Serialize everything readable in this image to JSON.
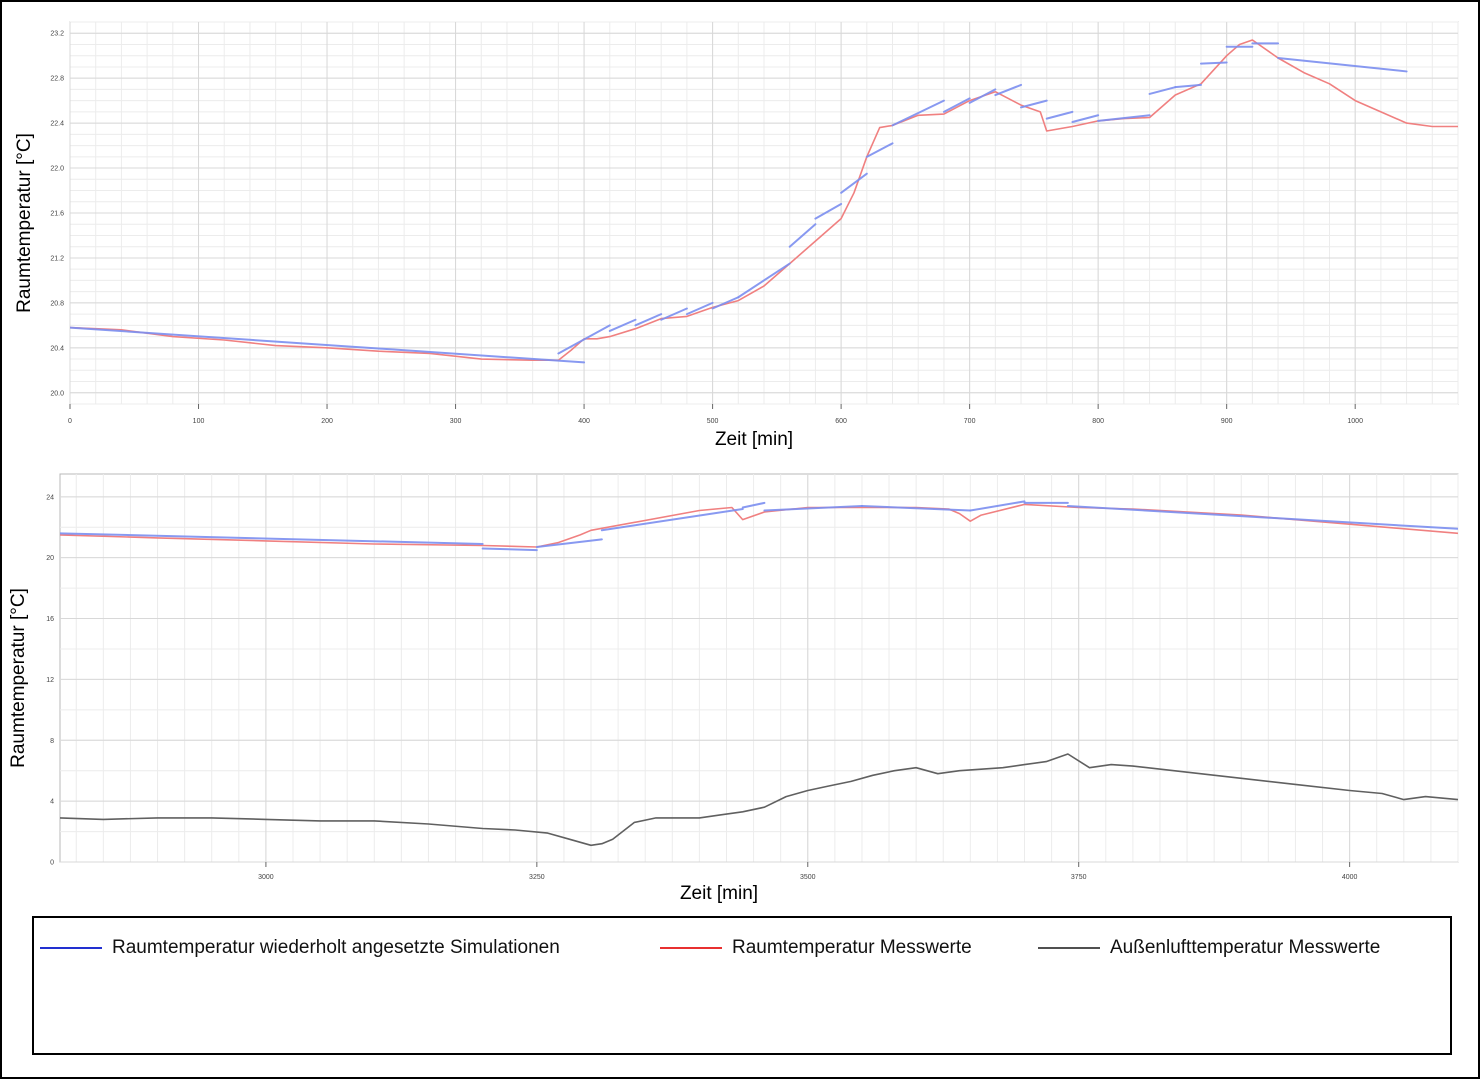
{
  "colors": {
    "simulation": "#7c8ff0",
    "measured_room": "#f08080",
    "outdoor": "#606060"
  },
  "legend": {
    "items": [
      {
        "label": "Raumtemperatur wiederholt angesetzte Simulationen",
        "color": "#2230d0"
      },
      {
        "label": "Raumtemperatur Messwerte",
        "color": "#e83030"
      },
      {
        "label": "Außenlufttemperatur Messwerte",
        "color": "#505050"
      }
    ]
  },
  "chart_data": [
    {
      "type": "line",
      "xlabel": "Zeit [min]",
      "ylabel": "Raumtemperatur [°C]",
      "xlim": [
        0,
        1080
      ],
      "ylim": [
        19.9,
        23.3
      ],
      "xticks": [
        0,
        100,
        200,
        300,
        400,
        500,
        600,
        700,
        800,
        900,
        1000
      ],
      "yticks": [
        20.0,
        20.4,
        20.8,
        21.2,
        21.6,
        22.0,
        22.4,
        22.8,
        23.2
      ],
      "grid": true,
      "series": [
        {
          "name": "Raumtemperatur Messwerte",
          "kind": "measured",
          "x": [
            0,
            40,
            80,
            120,
            160,
            200,
            240,
            280,
            320,
            360,
            380,
            390,
            400,
            410,
            420,
            440,
            460,
            480,
            500,
            520,
            540,
            560,
            580,
            600,
            610,
            620,
            630,
            640,
            660,
            680,
            700,
            720,
            740,
            755,
            760,
            780,
            800,
            820,
            840,
            860,
            880,
            900,
            910,
            920,
            940,
            960,
            980,
            1000,
            1020,
            1040,
            1060,
            1080
          ],
          "y": [
            20.58,
            20.56,
            20.5,
            20.47,
            20.42,
            20.4,
            20.37,
            20.35,
            20.3,
            20.29,
            20.29,
            20.38,
            20.48,
            20.48,
            20.5,
            20.57,
            20.66,
            20.68,
            20.76,
            20.82,
            20.95,
            21.15,
            21.35,
            21.55,
            21.78,
            22.1,
            22.36,
            22.38,
            22.47,
            22.48,
            22.6,
            22.68,
            22.56,
            22.5,
            22.33,
            22.37,
            22.42,
            22.44,
            22.45,
            22.65,
            22.75,
            23.0,
            23.1,
            23.14,
            22.98,
            22.85,
            22.75,
            22.6,
            22.5,
            22.4,
            22.37,
            22.37
          ]
        },
        {
          "name": "Raumtemperatur wiederholt angesetzte Simulationen",
          "kind": "segments",
          "segments": [
            [
              [
                0,
                20.58
              ],
              [
                400,
                20.27
              ]
            ],
            [
              [
                380,
                20.35
              ],
              [
                420,
                20.6
              ]
            ],
            [
              [
                420,
                20.55
              ],
              [
                440,
                20.65
              ]
            ],
            [
              [
                440,
                20.6
              ],
              [
                460,
                20.7
              ]
            ],
            [
              [
                460,
                20.65
              ],
              [
                480,
                20.75
              ]
            ],
            [
              [
                480,
                20.7
              ],
              [
                500,
                20.8
              ]
            ],
            [
              [
                500,
                20.75
              ],
              [
                520,
                20.85
              ]
            ],
            [
              [
                520,
                20.85
              ],
              [
                560,
                21.15
              ]
            ],
            [
              [
                560,
                21.3
              ],
              [
                580,
                21.5
              ]
            ],
            [
              [
                580,
                21.55
              ],
              [
                600,
                21.68
              ]
            ],
            [
              [
                600,
                21.78
              ],
              [
                620,
                21.95
              ]
            ],
            [
              [
                620,
                22.1
              ],
              [
                640,
                22.22
              ]
            ],
            [
              [
                640,
                22.38
              ],
              [
                680,
                22.6
              ]
            ],
            [
              [
                680,
                22.5
              ],
              [
                700,
                22.62
              ]
            ],
            [
              [
                700,
                22.58
              ],
              [
                720,
                22.7
              ]
            ],
            [
              [
                720,
                22.65
              ],
              [
                740,
                22.74
              ]
            ],
            [
              [
                740,
                22.54
              ],
              [
                760,
                22.6
              ]
            ],
            [
              [
                760,
                22.44
              ],
              [
                780,
                22.5
              ]
            ],
            [
              [
                780,
                22.41
              ],
              [
                800,
                22.47
              ]
            ],
            [
              [
                800,
                22.42
              ],
              [
                840,
                22.47
              ]
            ],
            [
              [
                840,
                22.66
              ],
              [
                860,
                22.72
              ]
            ],
            [
              [
                860,
                22.72
              ],
              [
                880,
                22.74
              ]
            ],
            [
              [
                880,
                22.93
              ],
              [
                900,
                22.94
              ]
            ],
            [
              [
                900,
                23.08
              ],
              [
                920,
                23.08
              ]
            ],
            [
              [
                920,
                23.11
              ],
              [
                940,
                23.11
              ]
            ],
            [
              [
                940,
                22.98
              ],
              [
                1040,
                22.86
              ]
            ]
          ]
        }
      ]
    },
    {
      "type": "line",
      "xlabel": "Zeit [min]",
      "ylabel": "Raumtemperatur [°C]",
      "xlim": [
        2810,
        4100
      ],
      "ylim": [
        0,
        25.5
      ],
      "xticks": [
        3000,
        3250,
        3500,
        3750,
        4000
      ],
      "xtick_labels": [
        "3000",
        "3250",
        "3500",
        "3750",
        "4000"
      ],
      "yticks": [
        0,
        4,
        8,
        12,
        16,
        20,
        24
      ],
      "grid": true,
      "series": [
        {
          "name": "Raumtemperatur Messwerte",
          "kind": "measured",
          "x": [
            2810,
            2900,
            3000,
            3100,
            3200,
            3250,
            3270,
            3290,
            3300,
            3400,
            3430,
            3440,
            3460,
            3500,
            3550,
            3600,
            3630,
            3640,
            3650,
            3660,
            3700,
            3750,
            3800,
            3900,
            4000,
            4100
          ],
          "y": [
            21.5,
            21.3,
            21.1,
            20.9,
            20.8,
            20.7,
            21.0,
            21.5,
            21.8,
            23.1,
            23.3,
            22.5,
            23.0,
            23.3,
            23.3,
            23.3,
            23.2,
            22.9,
            22.4,
            22.8,
            23.5,
            23.3,
            23.2,
            22.8,
            22.2,
            21.6
          ]
        },
        {
          "name": "Raumtemperatur wiederholt angesetzte Simulationen",
          "kind": "segments",
          "segments": [
            [
              [
                2810,
                21.6
              ],
              [
                3200,
                20.9
              ]
            ],
            [
              [
                3200,
                20.6
              ],
              [
                3250,
                20.5
              ]
            ],
            [
              [
                3250,
                20.7
              ],
              [
                3310,
                21.2
              ]
            ],
            [
              [
                3310,
                21.8
              ],
              [
                3440,
                23.2
              ]
            ],
            [
              [
                3440,
                23.3
              ],
              [
                3460,
                23.6
              ]
            ],
            [
              [
                3460,
                23.1
              ],
              [
                3550,
                23.4
              ]
            ],
            [
              [
                3550,
                23.4
              ],
              [
                3650,
                23.1
              ]
            ],
            [
              [
                3650,
                23.1
              ],
              [
                3700,
                23.7
              ]
            ],
            [
              [
                3700,
                23.6
              ],
              [
                3740,
                23.6
              ]
            ],
            [
              [
                3740,
                23.4
              ],
              [
                4100,
                21.9
              ]
            ]
          ]
        },
        {
          "name": "Außenlufttemperatur Messwerte",
          "kind": "outdoor",
          "x": [
            2810,
            2850,
            2900,
            2950,
            3000,
            3050,
            3100,
            3150,
            3200,
            3230,
            3260,
            3280,
            3300,
            3310,
            3320,
            3340,
            3360,
            3400,
            3420,
            3440,
            3460,
            3480,
            3500,
            3520,
            3540,
            3560,
            3580,
            3600,
            3620,
            3640,
            3660,
            3680,
            3700,
            3720,
            3740,
            3760,
            3780,
            3800,
            3850,
            3900,
            3950,
            4000,
            4030,
            4050,
            4070,
            4100
          ],
          "y": [
            2.9,
            2.8,
            2.9,
            2.9,
            2.8,
            2.7,
            2.7,
            2.5,
            2.2,
            2.1,
            1.9,
            1.5,
            1.1,
            1.2,
            1.5,
            2.6,
            2.9,
            2.9,
            3.1,
            3.3,
            3.6,
            4.3,
            4.7,
            5.0,
            5.3,
            5.7,
            6.0,
            6.2,
            5.8,
            6.0,
            6.1,
            6.2,
            6.4,
            6.6,
            7.1,
            6.2,
            6.4,
            6.3,
            5.9,
            5.5,
            5.1,
            4.7,
            4.5,
            4.1,
            4.3,
            4.1
          ]
        }
      ]
    }
  ]
}
